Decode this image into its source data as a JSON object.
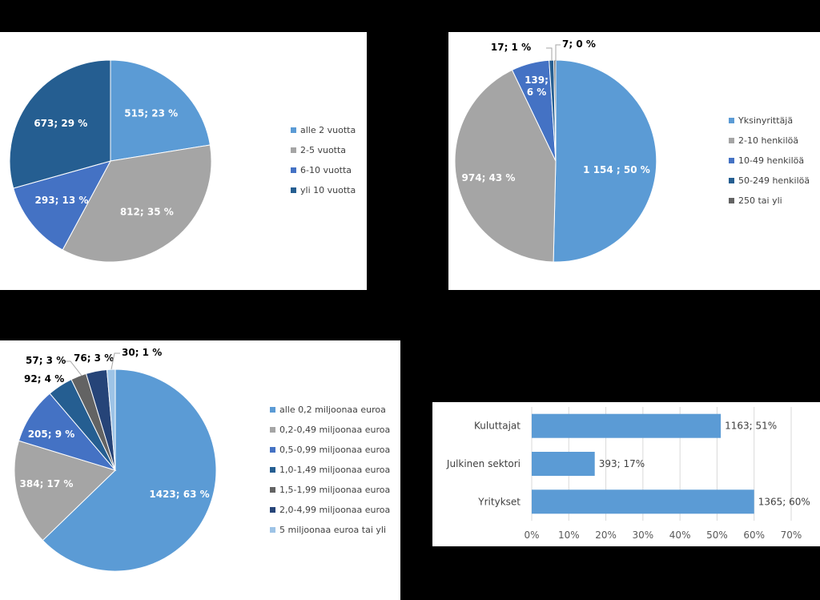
{
  "chart_data": [
    {
      "type": "pie",
      "categories": [
        "alle 2 vuotta",
        "2-5 vuotta",
        "6-10 vuotta",
        "yli 10 vuotta"
      ],
      "values": [
        515,
        812,
        293,
        673
      ],
      "data_labels": [
        "515; 23 %",
        "812; 35 %",
        "293; 13 %",
        "673; 29 %"
      ],
      "colors": [
        "#5b9bd5",
        "#a5a5a5",
        "#4472c4",
        "#255e91"
      ],
      "legend_position": "right"
    },
    {
      "type": "pie",
      "categories": [
        "Yksinyrittäjä",
        "2-10 henkilöä",
        "10-49 henkilöä",
        "50-249 henkilöä",
        "250 tai yli"
      ],
      "values": [
        1154,
        974,
        139,
        17,
        7
      ],
      "data_labels": [
        "1 154    ; 50 %",
        "974; 43 %",
        "139;\n6 %",
        "17; 1 %",
        "7; 0 %"
      ],
      "colors": [
        "#5b9bd5",
        "#a5a5a5",
        "#4472c4",
        "#255e91",
        "#636363"
      ],
      "legend_position": "right"
    },
    {
      "type": "pie",
      "categories": [
        "alle 0,2 miljoonaa euroa",
        "0,2-0,49 miljoonaa euroa",
        "0,5-0,99 miljoonaa euroa",
        "1,0-1,49 miljoonaa euroa",
        "1,5-1,99 miljoonaa euroa",
        "2,0-4,99 miljoonaa euroa",
        "5 miljoonaa euroa tai yli"
      ],
      "values": [
        1423,
        384,
        205,
        92,
        57,
        76,
        30
      ],
      "data_labels": [
        "1423; 63 %",
        "384; 17 %",
        "205; 9 %",
        "92; 4 %",
        "57; 3 %",
        "76; 3 %",
        "30; 1 %"
      ],
      "colors": [
        "#5b9bd5",
        "#a5a5a5",
        "#4472c4",
        "#255e91",
        "#636363",
        "#264478",
        "#9dc3e6"
      ],
      "legend_position": "right"
    },
    {
      "type": "bar",
      "orientation": "horizontal",
      "categories": [
        "Kuluttajat",
        "Julkinen sektori",
        "Yritykset"
      ],
      "values": [
        51,
        17,
        60
      ],
      "data_labels": [
        "1163; 51%",
        "393; 17%",
        "1365; 60%"
      ],
      "xlim": [
        0,
        70
      ],
      "ticks": [
        "0%",
        "10%",
        "20%",
        "30%",
        "40%",
        "50%",
        "60%",
        "70%"
      ],
      "color": "#5b9bd5"
    }
  ]
}
